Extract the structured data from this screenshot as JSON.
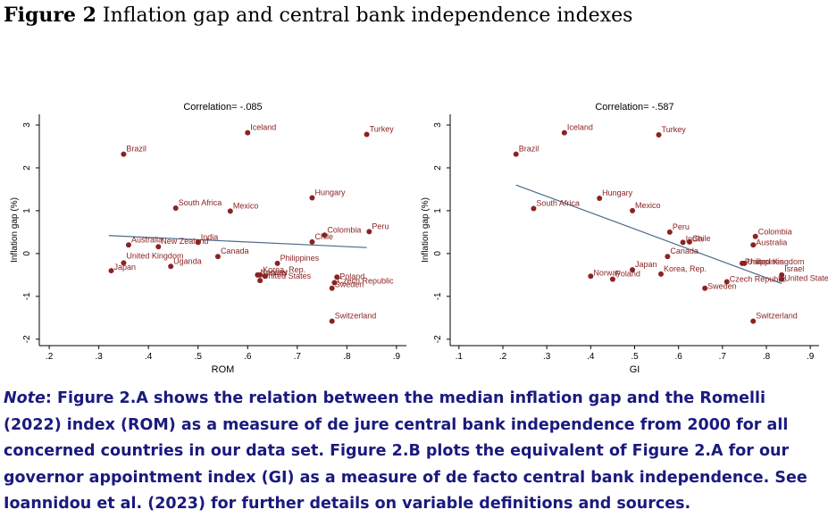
{
  "figure": {
    "label": "Figure 2",
    "title": "Inflation gap and central bank independence indexes"
  },
  "note": {
    "label": "Note",
    "text": ": Figure 2.A shows the relation between the median inflation gap and the Romelli (2022) index (ROM) as a measure of de jure central bank independence from 2000 for all concerned countries in our data set. Figure 2.B plots the equivalent of Figure 2.A for our governor appointment index (GI) as a measure of de facto central bank independence. See Ioannidou et al. (2023) for further details on variable definitions and sources."
  },
  "colors": {
    "marker": "#8b2323",
    "label": "#8b2323",
    "fit": "#4a6a8a",
    "axis": "#000000"
  },
  "chart_data": [
    {
      "type": "scatter",
      "title": "Correlation= -.085",
      "xlabel": "ROM",
      "ylabel": "Inflation gap (%)",
      "xlim": [
        0.18,
        0.92
      ],
      "ylim": [
        -2.15,
        3.25
      ],
      "xticks": [
        0.2,
        0.3,
        0.4,
        0.5,
        0.6,
        0.7,
        0.8,
        0.9
      ],
      "xtick_labels": [
        ".2",
        ".3",
        ".4",
        ".5",
        ".6",
        ".7",
        ".8",
        ".9"
      ],
      "yticks": [
        -2,
        -1,
        0,
        1,
        2,
        3
      ],
      "ytick_labels": [
        "-2",
        "-1",
        "0",
        "1",
        "2",
        "3"
      ],
      "fit_line": {
        "x": [
          0.32,
          0.84
        ],
        "y": [
          0.42,
          0.14
        ]
      },
      "points": [
        {
          "label": "Iceland",
          "x": 0.6,
          "y": 2.82
        },
        {
          "label": "Turkey",
          "x": 0.84,
          "y": 2.78
        },
        {
          "label": "Brazil",
          "x": 0.35,
          "y": 2.32
        },
        {
          "label": "Hungary",
          "x": 0.73,
          "y": 1.3
        },
        {
          "label": "South Africa",
          "x": 0.455,
          "y": 1.06
        },
        {
          "label": "Mexico",
          "x": 0.565,
          "y": 0.99
        },
        {
          "label": "Peru",
          "x": 0.845,
          "y": 0.51
        },
        {
          "label": "Colombia",
          "x": 0.755,
          "y": 0.43
        },
        {
          "label": "Chile",
          "x": 0.73,
          "y": 0.27
        },
        {
          "label": "India",
          "x": 0.5,
          "y": 0.26
        },
        {
          "label": "Australia",
          "x": 0.36,
          "y": 0.2
        },
        {
          "label": "New Zealand",
          "x": 0.42,
          "y": 0.16
        },
        {
          "label": "Canada",
          "x": 0.54,
          "y": -0.07
        },
        {
          "label": "United Kingdom",
          "x": 0.35,
          "y": -0.22
        },
        {
          "label": "Uganda",
          "x": 0.445,
          "y": -0.3
        },
        {
          "label": "Japan",
          "x": 0.325,
          "y": -0.4
        },
        {
          "label": "Philippines",
          "x": 0.66,
          "y": -0.23
        },
        {
          "label": "Korea, Rep.",
          "x": 0.625,
          "y": -0.5
        },
        {
          "label": "Norway",
          "x": 0.62,
          "y": -0.5
        },
        {
          "label": "Israel",
          "x": 0.635,
          "y": -0.53
        },
        {
          "label": "United States",
          "x": 0.625,
          "y": -0.63
        },
        {
          "label": "Poland",
          "x": 0.78,
          "y": -0.55
        },
        {
          "label": "Czech Republic",
          "x": 0.775,
          "y": -0.68
        },
        {
          "label": "Sweden",
          "x": 0.77,
          "y": -0.81
        },
        {
          "label": "Switzerland",
          "x": 0.77,
          "y": -1.58
        }
      ]
    },
    {
      "type": "scatter",
      "title": "Correlation= -.587",
      "xlabel": "GI",
      "ylabel": "Inflation gap (%)",
      "xlim": [
        0.08,
        0.92
      ],
      "ylim": [
        -2.15,
        3.25
      ],
      "xticks": [
        0.1,
        0.2,
        0.3,
        0.4,
        0.5,
        0.6,
        0.7,
        0.8,
        0.9
      ],
      "xtick_labels": [
        ".1",
        ".2",
        ".3",
        ".4",
        ".5",
        ".6",
        ".7",
        ".8",
        ".9"
      ],
      "yticks": [
        -2,
        -1,
        0,
        1,
        2,
        3
      ],
      "ytick_labels": [
        "-2",
        "-1",
        "0",
        "1",
        "2",
        "3"
      ],
      "fit_line": {
        "x": [
          0.23,
          0.835
        ],
        "y": [
          1.6,
          -0.7
        ]
      },
      "points": [
        {
          "label": "Iceland",
          "x": 0.34,
          "y": 2.82
        },
        {
          "label": "Turkey",
          "x": 0.555,
          "y": 2.77
        },
        {
          "label": "Brazil",
          "x": 0.23,
          "y": 2.32
        },
        {
          "label": "Hungary",
          "x": 0.42,
          "y": 1.29
        },
        {
          "label": "South Africa",
          "x": 0.27,
          "y": 1.05
        },
        {
          "label": "Mexico",
          "x": 0.495,
          "y": 1.0
        },
        {
          "label": "Peru",
          "x": 0.58,
          "y": 0.5
        },
        {
          "label": "Colombia",
          "x": 0.775,
          "y": 0.4
        },
        {
          "label": "India",
          "x": 0.61,
          "y": 0.26
        },
        {
          "label": "Chile",
          "x": 0.625,
          "y": 0.27
        },
        {
          "label": "Australia",
          "x": 0.77,
          "y": 0.2
        },
        {
          "label": "Canada",
          "x": 0.575,
          "y": -0.07
        },
        {
          "label": "United Kingdom",
          "x": 0.75,
          "y": -0.23
        },
        {
          "label": "Philippines",
          "x": 0.745,
          "y": -0.23
        },
        {
          "label": "Japan",
          "x": 0.495,
          "y": -0.38
        },
        {
          "label": "Norway",
          "x": 0.4,
          "y": -0.53
        },
        {
          "label": "Poland",
          "x": 0.45,
          "y": -0.6
        },
        {
          "label": "Korea, Rep.",
          "x": 0.56,
          "y": -0.48
        },
        {
          "label": "Israel",
          "x": 0.835,
          "y": -0.5
        },
        {
          "label": "United States",
          "x": 0.835,
          "y": -0.6
        },
        {
          "label": "Czech Republic",
          "x": 0.71,
          "y": -0.66
        },
        {
          "label": "Sweden",
          "x": 0.66,
          "y": -0.81
        },
        {
          "label": "Switzerland",
          "x": 0.77,
          "y": -1.58
        }
      ]
    }
  ]
}
